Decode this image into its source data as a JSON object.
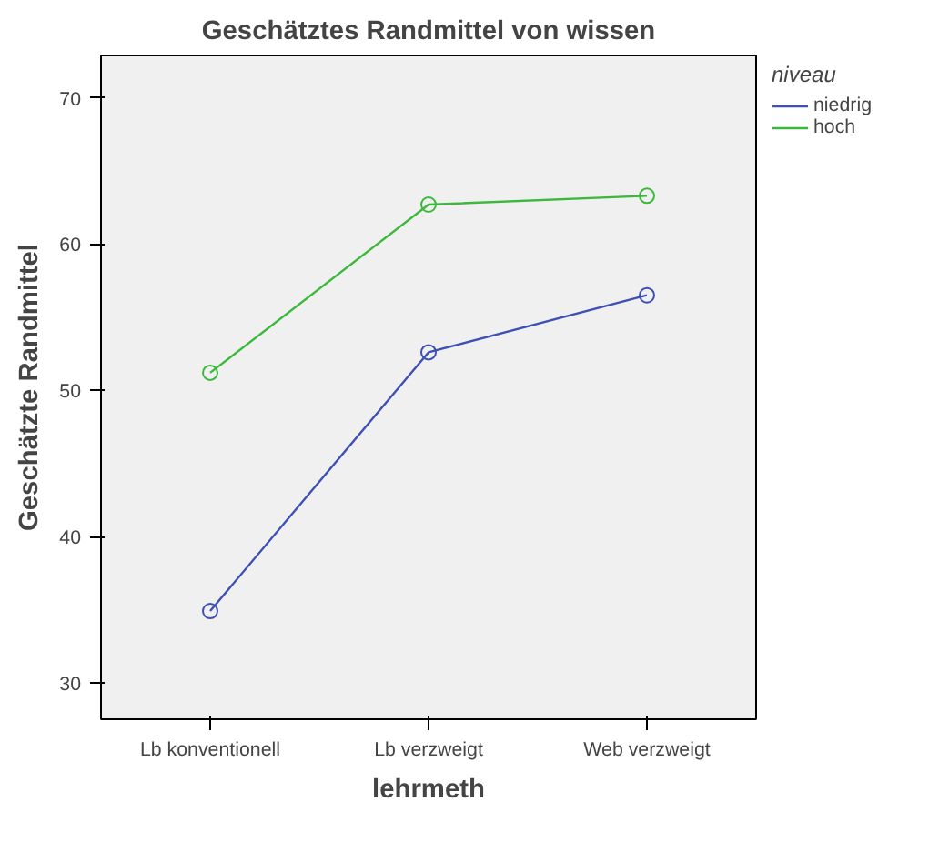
{
  "chart_data": {
    "type": "line",
    "title": "Geschätztes Randmittel von wissen",
    "xlabel": "lehrmeth",
    "ylabel": "Geschätzte Randmittel",
    "legend_title": "niveau",
    "categories": [
      "Lb konventionell",
      "Lb verzweigt",
      "Web verzweigt"
    ],
    "series": [
      {
        "name": "niedrig",
        "color": "#3e4fb5",
        "values": [
          34.9,
          52.6,
          56.5
        ]
      },
      {
        "name": "hoch",
        "color": "#3cb83c",
        "values": [
          51.2,
          62.7,
          63.3
        ]
      }
    ],
    "ylim": [
      27.5,
      72.9
    ],
    "yticks": [
      30,
      40,
      50,
      60,
      70
    ],
    "grid": false,
    "legend": "top right",
    "marker": "circle",
    "line_style": "solid"
  }
}
